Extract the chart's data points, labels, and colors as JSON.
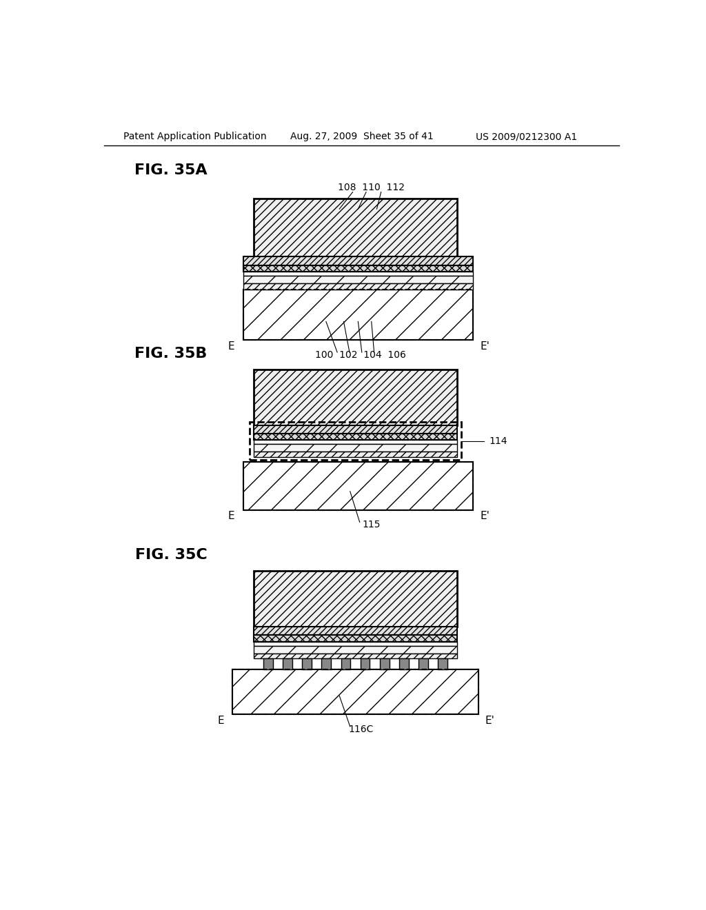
{
  "header_left": "Patent Application Publication",
  "header_mid": "Aug. 27, 2009  Sheet 35 of 41",
  "header_right": "US 2009/0212300 A1",
  "background": "#ffffff"
}
